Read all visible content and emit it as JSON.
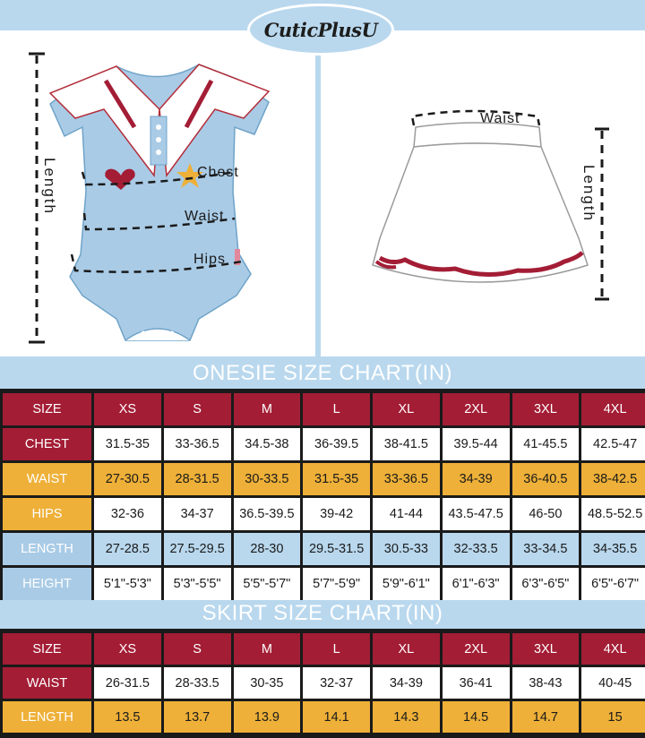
{
  "brand": {
    "logo_text": "CuticPlusU"
  },
  "onesie_illustration": {
    "labels": {
      "length": "Length",
      "chest": "Chest",
      "waist": "Waist",
      "hips": "Hips"
    }
  },
  "skirt_illustration": {
    "labels": {
      "waist": "Waist",
      "length": "Length"
    }
  },
  "colors": {
    "header_red": "#a31d35",
    "gold": "#eeb038",
    "light_blue": "#b9d8ee",
    "onesie_blue": "#a9cbe6"
  },
  "onesie_chart": {
    "title": "ONESIE SIZE CHART(IN)",
    "header_label": "SIZE",
    "sizes": [
      "XS",
      "S",
      "M",
      "L",
      "XL",
      "2XL",
      "3XL",
      "4XL"
    ],
    "rows": [
      {
        "label": "CHEST",
        "values": [
          "31.5-35",
          "33-36.5",
          "34.5-38",
          "36-39.5",
          "38-41.5",
          "39.5-44",
          "41-45.5",
          "42.5-47"
        ]
      },
      {
        "label": "WAIST",
        "values": [
          "27-30.5",
          "28-31.5",
          "30-33.5",
          "31.5-35",
          "33-36.5",
          "34-39",
          "36-40.5",
          "38-42.5"
        ]
      },
      {
        "label": "HIPS",
        "values": [
          "32-36",
          "34-37",
          "36.5-39.5",
          "39-42",
          "41-44",
          "43.5-47.5",
          "46-50",
          "48.5-52.5"
        ]
      },
      {
        "label": "LENGTH",
        "values": [
          "27-28.5",
          "27.5-29.5",
          "28-30",
          "29.5-31.5",
          "30.5-33",
          "32-33.5",
          "33-34.5",
          "34-35.5"
        ]
      },
      {
        "label": "HEIGHT",
        "values": [
          "5'1\"-5'3\"",
          "5'3\"-5'5\"",
          "5'5\"-5'7\"",
          "5'7\"-5'9\"",
          "5'9\"-6'1\"",
          "6'1\"-6'3\"",
          "6'3\"-6'5\"",
          "6'5\"-6'7\""
        ]
      }
    ]
  },
  "skirt_chart": {
    "title": "SKIRT SIZE CHART(IN)",
    "header_label": "SIZE",
    "sizes": [
      "XS",
      "S",
      "M",
      "L",
      "XL",
      "2XL",
      "3XL",
      "4XL"
    ],
    "rows": [
      {
        "label": "WAIST",
        "values": [
          "26-31.5",
          "28-33.5",
          "30-35",
          "32-37",
          "34-39",
          "36-41",
          "38-43",
          "40-45"
        ]
      },
      {
        "label": "LENGTH",
        "values": [
          "13.5",
          "13.7",
          "13.9",
          "14.1",
          "14.3",
          "14.5",
          "14.7",
          "15"
        ]
      }
    ]
  }
}
